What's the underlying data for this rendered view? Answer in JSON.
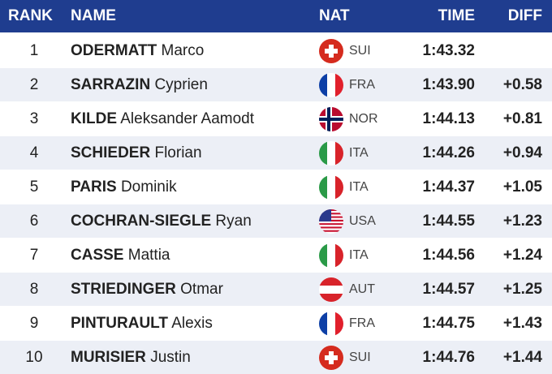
{
  "header": {
    "rank": "RANK",
    "name": "NAME",
    "nat": "NAT",
    "time": "TIME",
    "diff": "DIFF"
  },
  "rows": [
    {
      "rank": 1,
      "surname": "ODERMATT",
      "given": "Marco",
      "nat": "SUI",
      "time": "1:43.32"
    },
    {
      "rank": 2,
      "surname": "SARRAZIN",
      "given": "Cyprien",
      "nat": "FRA",
      "time": "1:43.90",
      "diff": "+0.58"
    },
    {
      "rank": 3,
      "surname": "KILDE",
      "given": "Aleksander Aamodt",
      "nat": "NOR",
      "time": "1:44.13",
      "diff": "+0.81"
    },
    {
      "rank": 4,
      "surname": "SCHIEDER",
      "given": "Florian",
      "nat": "ITA",
      "time": "1:44.26",
      "diff": "+0.94"
    },
    {
      "rank": 5,
      "surname": "PARIS",
      "given": "Dominik",
      "nat": "ITA",
      "time": "1:44.37",
      "diff": "+1.05"
    },
    {
      "rank": 6,
      "surname": "COCHRAN-SIEGLE",
      "given": "Ryan",
      "nat": "USA",
      "time": "1:44.55",
      "diff": "+1.23"
    },
    {
      "rank": 7,
      "surname": "CASSE",
      "given": "Mattia",
      "nat": "ITA",
      "time": "1:44.56",
      "diff": "+1.24"
    },
    {
      "rank": 8,
      "surname": "STRIEDINGER",
      "given": "Otmar",
      "nat": "AUT",
      "time": "1:44.57",
      "diff": "+1.25"
    },
    {
      "rank": 9,
      "surname": "PINTURAULT",
      "given": "Alexis",
      "nat": "FRA",
      "time": "1:44.75",
      "diff": "+1.43"
    },
    {
      "rank": 10,
      "surname": "MURISIER",
      "given": "Justin",
      "nat": "SUI",
      "time": "1:44.76",
      "diff": "+1.44"
    }
  ]
}
